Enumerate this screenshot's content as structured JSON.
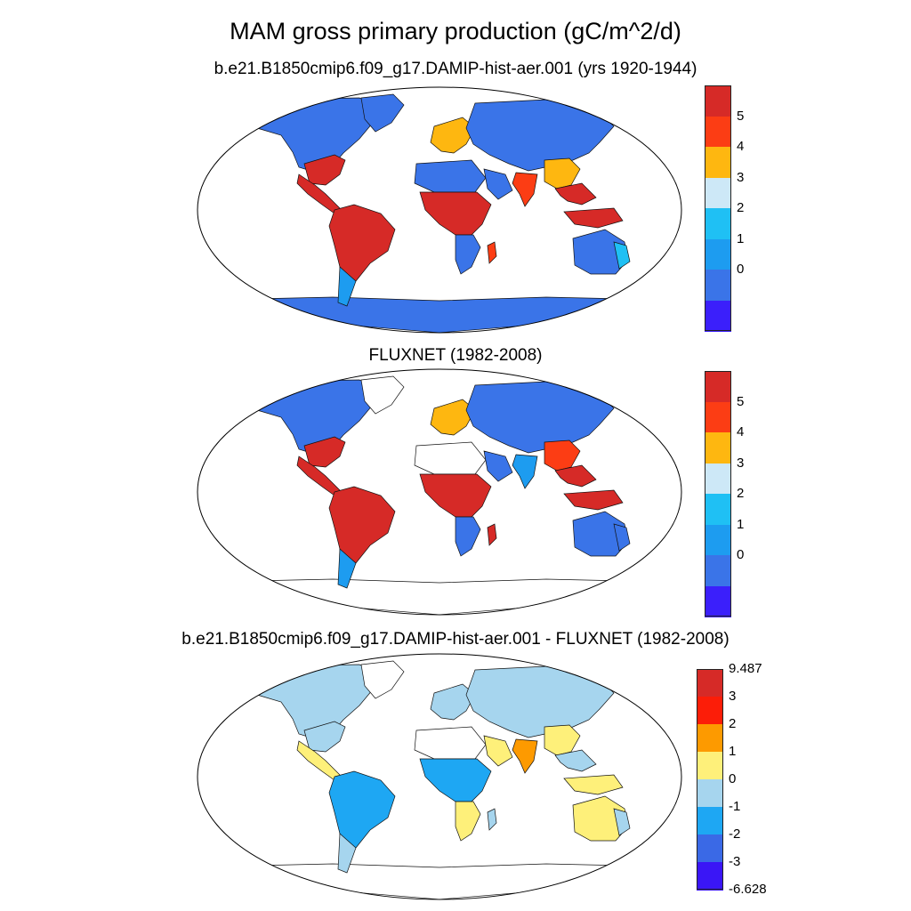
{
  "title": "MAM gross primary production (gC/m^2/d)",
  "panels": [
    {
      "id": "model",
      "subtitle": "b.e21.B1850cmip6.f09_g17.DAMIP-hist-aer.001 (yrs 1920-1944)",
      "colorbar": {
        "colors": [
          "#d62a27",
          "#fc3d14",
          "#feb710",
          "#cde8f7",
          "#1fc0f4",
          "#1d9cf0",
          "#3a74e8",
          "#3b1ffb"
        ],
        "labels": [
          "5",
          "4",
          "3",
          "2",
          "1",
          "0"
        ]
      }
    },
    {
      "id": "obs",
      "subtitle": "FLUXNET (1982-2008)",
      "colorbar": {
        "colors": [
          "#d62a27",
          "#fc3d14",
          "#feb710",
          "#cde8f7",
          "#1fc0f4",
          "#1d9cf0",
          "#3a74e8",
          "#3b1ffb"
        ],
        "labels": [
          "5",
          "4",
          "3",
          "2",
          "1",
          "0"
        ]
      }
    },
    {
      "id": "diff",
      "subtitle": "b.e21.B1850cmip6.f09_g17.DAMIP-hist-aer.001 - FLUXNET (1982-2008)",
      "colorbar": {
        "colors": [
          "#d62a27",
          "#fc1d08",
          "#fd9a00",
          "#fef07a",
          "#a6d5ee",
          "#1ea7f3",
          "#3a69e6",
          "#3a16f6"
        ],
        "labels": [
          "9.487",
          "3",
          "2",
          "1",
          "0",
          "-1",
          "-2",
          "-3",
          "-6.628"
        ]
      }
    }
  ],
  "regions": {
    "model": {
      "northAmerica": "#3a74e8",
      "eastUS": "#d62a27",
      "centralAmerica": "#d62a27",
      "greenland": "#3a74e8",
      "southAmerica": "#d62a27",
      "patagonia": "#1d9cf0",
      "europe": "#feb710",
      "asia": "#3a74e8",
      "chinaEast": "#feb710",
      "india": "#fc3d14",
      "seAsia": "#d62a27",
      "indonesia": "#d62a27",
      "sahara": "#3a74e8",
      "arabia": "#3a74e8",
      "africaTropics": "#d62a27",
      "southAfrica": "#3a74e8",
      "madagascar": "#fc3d14",
      "australia": "#3a74e8",
      "australiaEast": "#1fc0f4",
      "antarctica": "#3a74e8"
    },
    "obs": {
      "northAmerica": "#3a74e8",
      "eastUS": "#d62a27",
      "centralAmerica": "#d62a27",
      "greenland": "#ffffff",
      "southAmerica": "#d62a27",
      "patagonia": "#1d9cf0",
      "europe": "#feb710",
      "asia": "#3a74e8",
      "chinaEast": "#fc3d14",
      "india": "#1d9cf0",
      "seAsia": "#d62a27",
      "indonesia": "#d62a27",
      "sahara": "#ffffff",
      "arabia": "#3a74e8",
      "africaTropics": "#d62a27",
      "southAfrica": "#3a74e8",
      "madagascar": "#d62a27",
      "australia": "#3a74e8",
      "australiaEast": "#3a74e8",
      "antarctica": "#ffffff"
    },
    "diff": {
      "northAmerica": "#a6d5ee",
      "eastUS": "#a6d5ee",
      "centralAmerica": "#fef07a",
      "greenland": "#ffffff",
      "southAmerica": "#1ea7f3",
      "patagonia": "#a6d5ee",
      "europe": "#a6d5ee",
      "asia": "#a6d5ee",
      "chinaEast": "#fef07a",
      "india": "#fd9a00",
      "seAsia": "#a6d5ee",
      "indonesia": "#fef07a",
      "sahara": "#ffffff",
      "arabia": "#fef07a",
      "africaTropics": "#1ea7f3",
      "southAfrica": "#fef07a",
      "madagascar": "#a6d5ee",
      "australia": "#fef07a",
      "australiaEast": "#a6d5ee",
      "antarctica": "#ffffff"
    }
  }
}
